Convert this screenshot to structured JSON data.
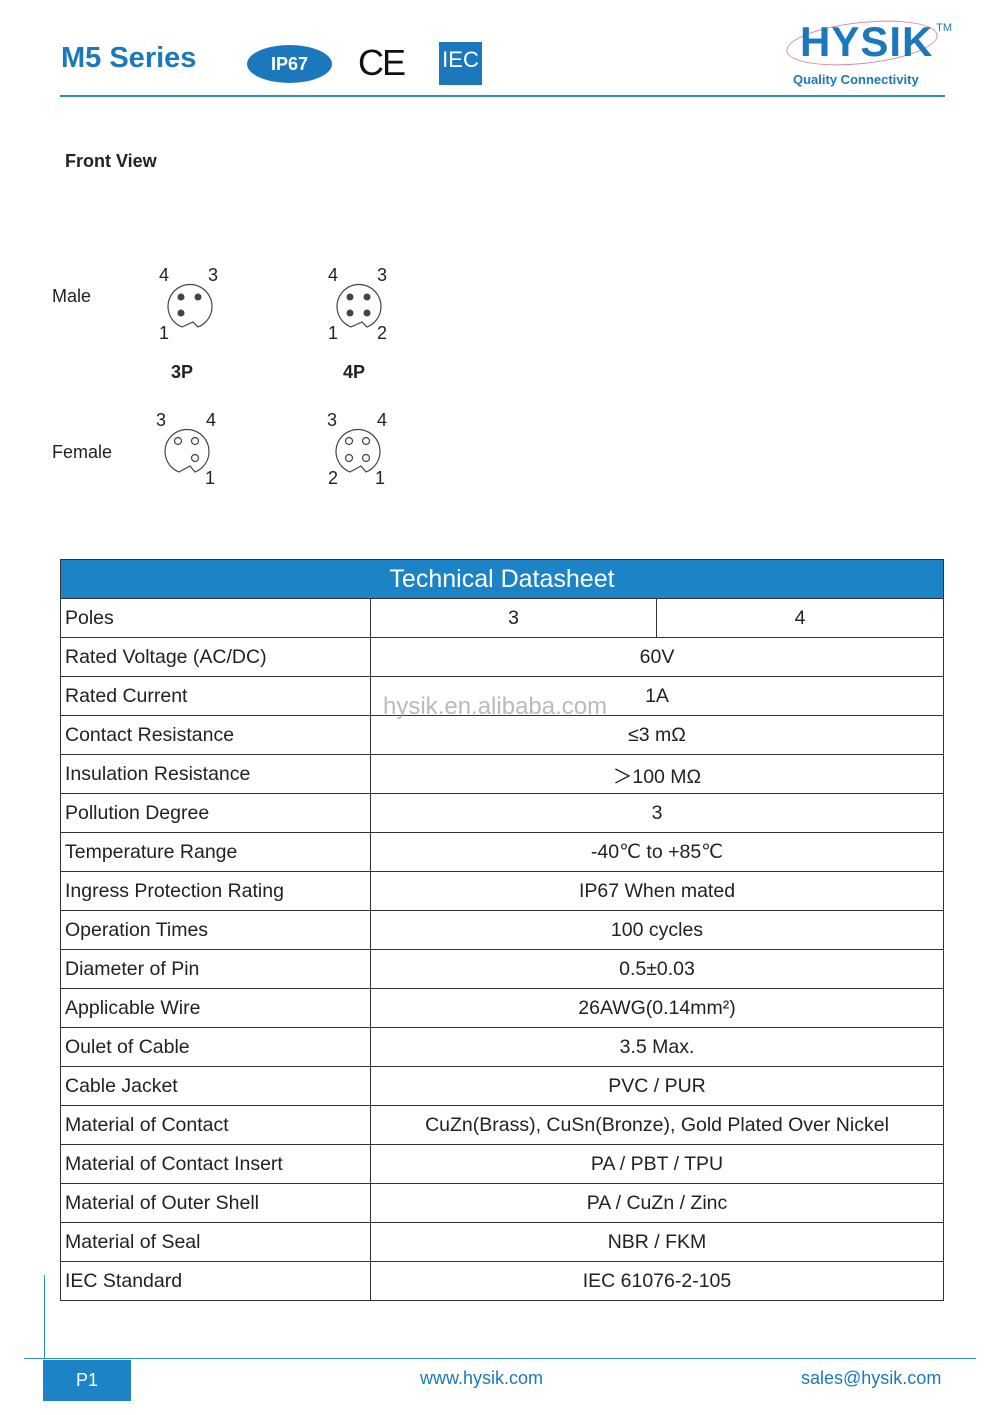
{
  "header": {
    "title": "M5 Series",
    "badge": "IP67",
    "ce_mark": "CE",
    "iec_mark": "IEC",
    "logo": "HYSIK",
    "tagline": "Quality Connectivity",
    "accent": "#1b78bd"
  },
  "front_view": {
    "title": "Front View",
    "male": "Male",
    "female": "Female",
    "type_3p": "3P",
    "type_4p": "4P",
    "male_3p": [
      "4",
      "3",
      "1"
    ],
    "male_4p": [
      "4",
      "3",
      "1",
      "2"
    ],
    "female_3p": [
      "3",
      "4",
      "1"
    ],
    "female_4p": [
      "3",
      "4",
      "2",
      "1"
    ]
  },
  "table": {
    "title": "Technical Datasheet",
    "poles_label": "Poles",
    "poles": [
      "3",
      "4"
    ],
    "rows": [
      [
        "Rated Voltage (AC/DC)",
        "60V"
      ],
      [
        "Rated Current",
        "1A"
      ],
      [
        "Contact Resistance",
        "≤3 mΩ"
      ],
      [
        "Insulation Resistance",
        "＞100 MΩ"
      ],
      [
        "Pollution Degree",
        "3"
      ],
      [
        "Temperature Range",
        "-40℃ to +85℃"
      ],
      [
        "Ingress Protection Rating",
        "IP67  When mated"
      ],
      [
        "Operation Times",
        "100 cycles"
      ],
      [
        "Diameter of Pin",
        "0.5±0.03"
      ],
      [
        "Applicable Wire",
        "26AWG(0.14mm²)"
      ],
      [
        "Oulet of Cable",
        "3.5 Max."
      ],
      [
        "Cable Jacket",
        "PVC / PUR"
      ],
      [
        "Material of Contact",
        "CuZn(Brass), CuSn(Bronze), Gold Plated Over Nickel"
      ],
      [
        "Material of Contact Insert",
        "PA / PBT / TPU"
      ],
      [
        "Material of Outer Shell",
        "PA / CuZn / Zinc"
      ],
      [
        "Material of Seal",
        "NBR / FKM"
      ],
      [
        "IEC Standard",
        "IEC 61076-2-105"
      ]
    ]
  },
  "watermark": "hysik.en.alibaba.com",
  "footer": {
    "page": "P1",
    "website": "www.hysik.com",
    "email": "sales@hysik.com"
  }
}
